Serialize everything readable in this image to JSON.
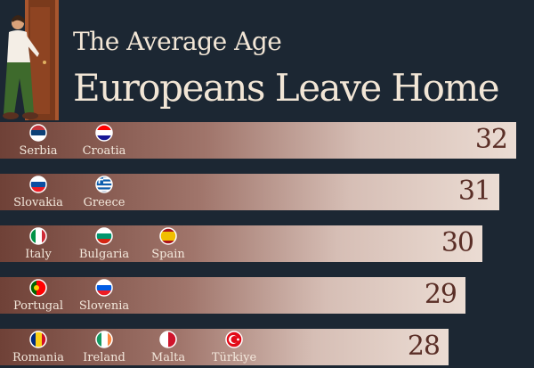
{
  "title_line1": "The Average Age",
  "title_line2": "Europeans Leave Home",
  "chart_data": {
    "type": "bar",
    "orientation": "horizontal",
    "title": "The Average Age Europeans Leave Home",
    "categories": [
      "Serbia, Croatia",
      "Slovakia, Greece",
      "Italy, Bulgaria, Spain",
      "Portugal, Slovenia",
      "Romania, Ireland, Malta, Türkiye"
    ],
    "values": [
      32,
      31,
      30,
      29,
      28
    ],
    "rows": [
      {
        "value": 32,
        "countries": [
          {
            "name": "Serbia",
            "flag": "serbia-flag-icon"
          },
          {
            "name": "Croatia",
            "flag": "croatia-flag-icon"
          }
        ]
      },
      {
        "value": 31,
        "countries": [
          {
            "name": "Slovakia",
            "flag": "slovakia-flag-icon"
          },
          {
            "name": "Greece",
            "flag": "greece-flag-icon"
          }
        ]
      },
      {
        "value": 30,
        "countries": [
          {
            "name": "Italy",
            "flag": "italy-flag-icon"
          },
          {
            "name": "Bulgaria",
            "flag": "bulgaria-flag-icon"
          },
          {
            "name": "Spain",
            "flag": "spain-flag-icon"
          }
        ]
      },
      {
        "value": 29,
        "countries": [
          {
            "name": "Portugal",
            "flag": "portugal-flag-icon"
          },
          {
            "name": "Slovenia",
            "flag": "slovenia-flag-icon"
          }
        ]
      },
      {
        "value": 28,
        "countries": [
          {
            "name": "Romania",
            "flag": "romania-flag-icon"
          },
          {
            "name": "Ireland",
            "flag": "ireland-flag-icon"
          },
          {
            "name": "Malta",
            "flag": "malta-flag-icon"
          },
          {
            "name": "Türkiye",
            "flag": "turkiye-flag-icon"
          }
        ]
      }
    ],
    "colors": {
      "background": "#1c2733",
      "bar_start": "#6f4137",
      "bar_end": "#ebdcd3",
      "value_text": "#5a2e26",
      "label_text": "#f3e8dc"
    }
  }
}
